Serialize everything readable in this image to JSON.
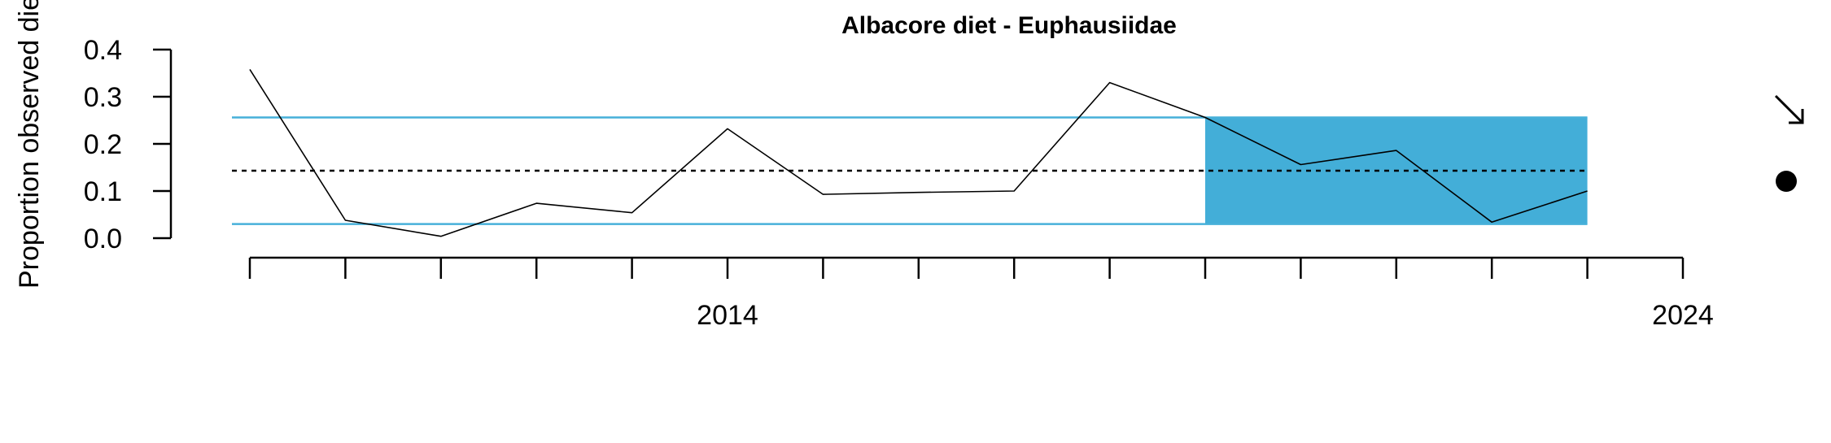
{
  "chart_data": {
    "type": "line",
    "title": "Albacore diet - Euphausiidae",
    "ylabel": "Proportion observed die",
    "xlabel": "",
    "x_tick_labels": [
      "2014",
      "2024"
    ],
    "x_ticks_minor": [
      2009,
      2010,
      2011,
      2012,
      2013,
      2014,
      2015,
      2016,
      2017,
      2018,
      2019,
      2020,
      2021,
      2022,
      2023,
      2024
    ],
    "xlim": [
      2009,
      2024
    ],
    "ylim": [
      0,
      0.4
    ],
    "y_ticks": [
      "0.0",
      "0.1",
      "0.2",
      "0.3",
      "0.4"
    ],
    "series": [
      {
        "x": [
          2009,
          2010,
          2011,
          2012,
          2013,
          2014,
          2015,
          2016,
          2017,
          2018,
          2019,
          2020,
          2021,
          2022,
          2023
        ],
        "values": [
          0.358,
          0.038,
          0.004,
          0.074,
          0.054,
          0.232,
          0.093,
          0.097,
          0.1,
          0.33,
          0.256,
          0.156,
          0.186,
          0.034,
          0.1
        ]
      }
    ],
    "mean": 0.143,
    "upper_sd": 0.256,
    "lower_sd": 0.03,
    "highlight_x_range": [
      2019,
      2023
    ],
    "grid": false,
    "colors": {
      "line": "#000000",
      "sd_lines": "#47b0d9",
      "highlight": "#43aed8",
      "mean_line": "#000000"
    },
    "symbols": {
      "trend_icon": "arrow-down-right-icon",
      "mean_icon": "filled-circle-icon"
    }
  }
}
